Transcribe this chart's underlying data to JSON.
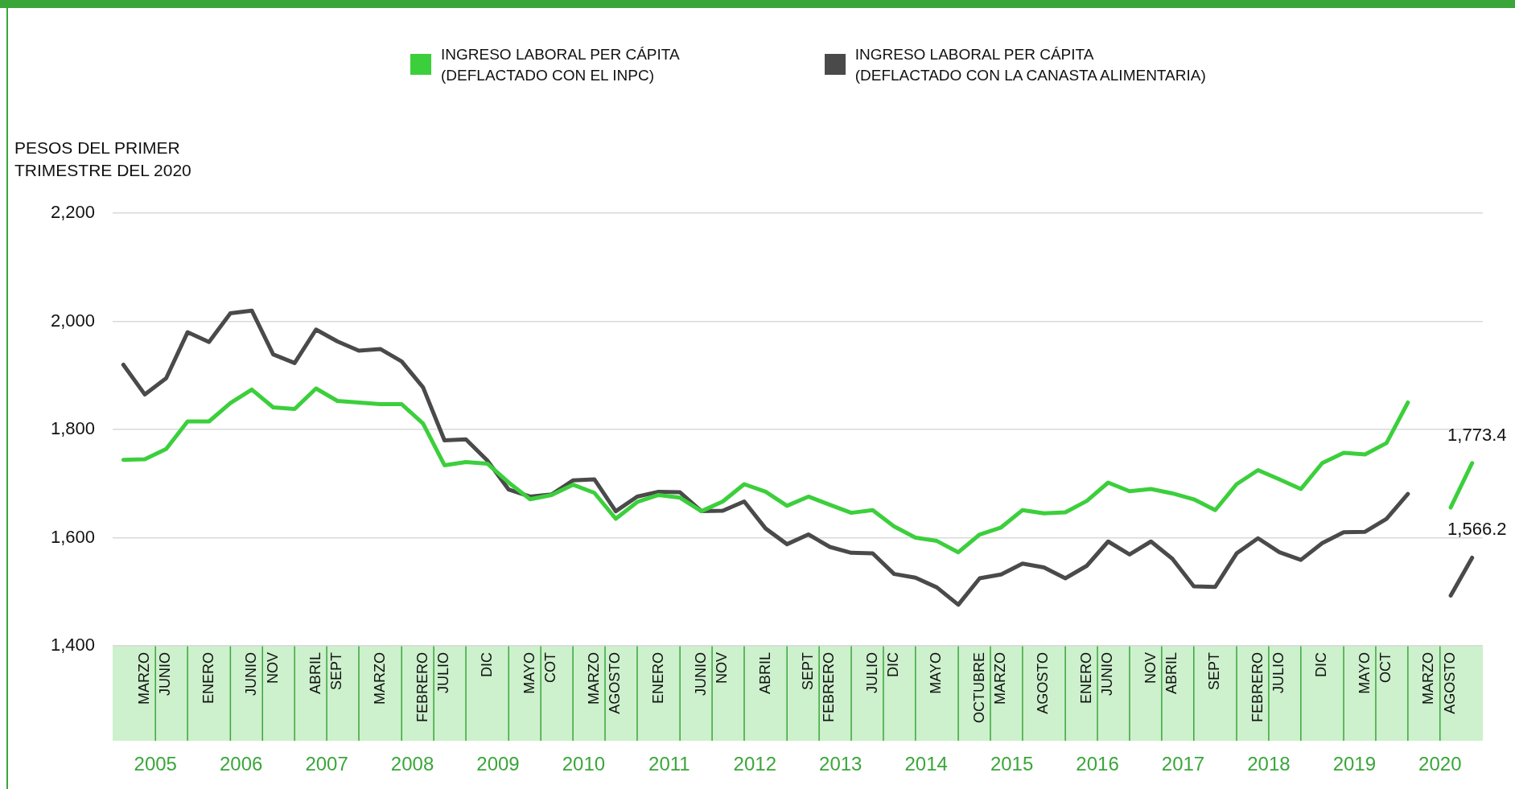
{
  "chart_data": {
    "type": "line",
    "ylabel": "PESOS DEL PRIMER TRIMESTRE DEL 2020",
    "legend": "top",
    "grid": "y",
    "marker": "none",
    "line_style": "solid",
    "categories": [
      null,
      "MARZO",
      "JUNIO",
      null,
      "ENERO",
      null,
      "JUNIO",
      "NOV",
      null,
      "ABRIL",
      "SEPT",
      null,
      "MARZO",
      null,
      "FEBRERO",
      "JULIO",
      null,
      "DIC",
      null,
      "MAYO",
      "COT",
      null,
      "MARZO",
      "AGOSTO",
      null,
      "ENERO",
      null,
      "JUNIO",
      "NOV",
      null,
      "ABRIL",
      null,
      "SEPT",
      "FEBRERO",
      null,
      "JULIO",
      "DIC",
      null,
      "MAYO",
      null,
      "OCTUBRE",
      "MARZO",
      null,
      "AGOSTO",
      null,
      "ENERO",
      "JUNIO",
      null,
      "NOV",
      "ABRIL",
      null,
      "SEPT",
      null,
      "FEBRERO",
      "JULIO",
      null,
      "DIC",
      null,
      "MAYO",
      "OCT",
      null,
      "MARZO",
      "AGOSTO",
      null
    ],
    "ylim": [
      1400,
      2200
    ],
    "yticks": [
      {
        "value": 1400,
        "label": "1,400"
      },
      {
        "value": 1600,
        "label": "1,600"
      },
      {
        "value": 1800,
        "label": "1,800"
      },
      {
        "value": 2000,
        "label": "2,000"
      },
      {
        "value": 2200,
        "label": "2,200"
      }
    ],
    "series": [
      {
        "name": "INGRESO LABORAL PER CÁPITA\n(DEFLACTADO CON EL INPC)",
        "color": "#3ccf3c",
        "values": [
          1744,
          1745,
          1764,
          1815,
          1815,
          1849,
          1874,
          1841,
          1838,
          1876,
          1853,
          1850,
          1847,
          1847,
          1811,
          1734,
          1740,
          1737,
          1702,
          1671,
          1679,
          1698,
          1683,
          1635,
          1666,
          1679,
          1674,
          1649,
          1667,
          1699,
          1685,
          1659,
          1676,
          1661,
          1646,
          1651,
          1621,
          1600,
          1594,
          1573,
          1606,
          1619,
          1651,
          1645,
          1647,
          1668,
          1702,
          1686,
          1690,
          1682,
          1671,
          1651,
          1699,
          1725,
          1708,
          1690,
          1738,
          1757,
          1754,
          1775,
          1850,
          null,
          1656,
          1738
        ]
      },
      {
        "name": "INGRESO LABORAL PER CÁPITA\n(DEFLACTADO CON LA CANASTA ALIMENTARIA)",
        "color": "#4a4a4a",
        "values": [
          1920,
          1865,
          1895,
          1980,
          1962,
          2015,
          2020,
          1939,
          1923,
          1985,
          1963,
          1946,
          1949,
          1926,
          1878,
          1780,
          1782,
          1743,
          1689,
          1676,
          1680,
          1706,
          1708,
          1649,
          1676,
          1685,
          1684,
          1649,
          1650,
          1667,
          1617,
          1588,
          1606,
          1583,
          1572,
          1571,
          1533,
          1526,
          1508,
          1476,
          1525,
          1532,
          1552,
          1545,
          1525,
          1548,
          1593,
          1569,
          1593,
          1561,
          1510,
          1509,
          1571,
          1599,
          1573,
          1559,
          1590,
          1610,
          1611,
          1635,
          1681,
          null,
          1493,
          1563
        ]
      }
    ],
    "annotations": [
      "2005",
      "2006",
      "2007",
      "2008",
      "2009",
      "2010",
      "2011",
      "2012",
      "2013",
      "2014",
      "2015",
      "2016",
      "2017",
      "2018",
      "2019",
      "2020",
      "1,773.4",
      "1,566.2"
    ]
  }
}
